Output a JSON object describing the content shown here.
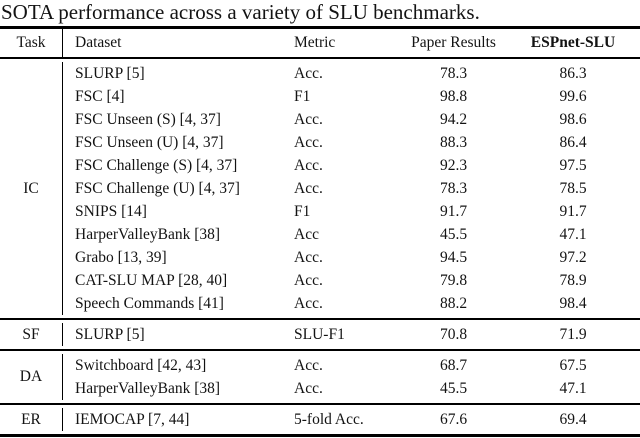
{
  "title": "SOTA performance across a variety of SLU benchmarks.",
  "table": {
    "headers": {
      "task": "Task",
      "dataset": "Dataset",
      "metric": "Metric",
      "paper": "Paper Results",
      "espnet": "ESPnet-SLU"
    },
    "sections": [
      {
        "task": "IC",
        "rows": [
          {
            "dataset": "SLURP [5]",
            "metric": "Acc.",
            "paper": "78.3",
            "espnet": "86.3"
          },
          {
            "dataset": "FSC [4]",
            "metric": "F1",
            "paper": "98.8",
            "espnet": "99.6"
          },
          {
            "dataset": "FSC Unseen (S) [4, 37]",
            "metric": "Acc.",
            "paper": "94.2",
            "espnet": "98.6"
          },
          {
            "dataset": "FSC Unseen (U) [4, 37]",
            "metric": "Acc.",
            "paper": "88.3",
            "espnet": "86.4"
          },
          {
            "dataset": "FSC Challenge (S) [4, 37]",
            "metric": "Acc.",
            "paper": "92.3",
            "espnet": "97.5"
          },
          {
            "dataset": "FSC Challenge (U) [4, 37]",
            "metric": "Acc.",
            "paper": "78.3",
            "espnet": "78.5"
          },
          {
            "dataset": "SNIPS [14]",
            "metric": "F1",
            "paper": "91.7",
            "espnet": "91.7"
          },
          {
            "dataset": "HarperValleyBank [38]",
            "metric": "Acc",
            "paper": "45.5",
            "espnet": "47.1"
          },
          {
            "dataset": "Grabo [13, 39]",
            "metric": "Acc.",
            "paper": "94.5",
            "espnet": "97.2"
          },
          {
            "dataset": "CAT-SLU MAP [28, 40]",
            "metric": "Acc.",
            "paper": "79.8",
            "espnet": "78.9"
          },
          {
            "dataset": "Speech Commands [41]",
            "metric": "Acc.",
            "paper": "88.2",
            "espnet": "98.4"
          }
        ]
      },
      {
        "task": "SF",
        "rows": [
          {
            "dataset": "SLURP [5]",
            "metric": "SLU-F1",
            "paper": "70.8",
            "espnet": "71.9"
          }
        ]
      },
      {
        "task": "DA",
        "rows": [
          {
            "dataset": "Switchboard [42, 43]",
            "metric": "Acc.",
            "paper": "68.7",
            "espnet": "67.5"
          },
          {
            "dataset": "HarperValleyBank [38]",
            "metric": "Acc.",
            "paper": "45.5",
            "espnet": "47.1"
          }
        ]
      },
      {
        "task": "ER",
        "rows": [
          {
            "dataset": "IEMOCAP [7, 44]",
            "metric": "5-fold Acc.",
            "paper": "67.6",
            "espnet": "69.4"
          }
        ]
      }
    ]
  }
}
